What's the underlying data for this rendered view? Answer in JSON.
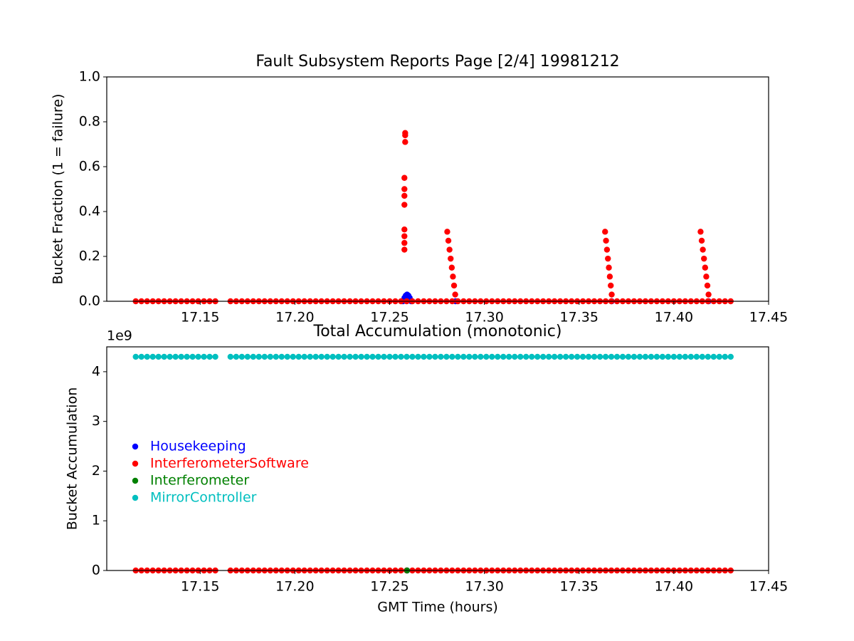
{
  "chart_data": [
    {
      "type": "scatter",
      "title": "Fault Subsystem Reports Page [2/4] 19981212",
      "y_label": "Bucket Fraction (1 = failure)",
      "xlim": [
        17.1007,
        17.45
      ],
      "xticks": [
        17.15,
        {
          "value": 17.2,
          "label": "17.20"
        },
        17.25,
        {
          "value": 17.3,
          "label": "17.30"
        },
        17.35,
        {
          "value": 17.4,
          "label": "17.40"
        },
        17.45
      ],
      "ylim": [
        0,
        1
      ],
      "yticks": [
        {
          "value": 0,
          "label": "0.0"
        },
        0.2,
        0.4,
        0.6,
        0.8,
        {
          "value": 1,
          "label": "1.0"
        }
      ],
      "series": [
        {
          "name": "Housekeeping",
          "color": "#0000ff",
          "x": [
            17.257,
            17.2578,
            17.2585,
            17.2592,
            17.2599,
            17.2606,
            17.2614,
            17.2848,
            17.3672,
            17.4183
          ],
          "values": [
            0,
            0.015,
            0.025,
            0.03,
            0.025,
            0.015,
            0,
            0,
            0,
            0
          ]
        },
        {
          "name": "InterferometerSoftware",
          "color": "#ff0000",
          "x": [
            17.116,
            17.119,
            17.122,
            17.125,
            17.128,
            17.131,
            17.134,
            17.137,
            17.14,
            17.143,
            17.146,
            17.149,
            17.152,
            17.155,
            17.158,
            17.166,
            17.169,
            17.172,
            17.175,
            17.178,
            17.181,
            17.184,
            17.187,
            17.19,
            17.193,
            17.196,
            17.199,
            17.202,
            17.205,
            17.208,
            17.211,
            17.214,
            17.217,
            17.22,
            17.223,
            17.226,
            17.229,
            17.232,
            17.235,
            17.238,
            17.241,
            17.244,
            17.247,
            17.25,
            17.253,
            17.256,
            17.259,
            17.262,
            17.265,
            17.268,
            17.271,
            17.274,
            17.277,
            17.28,
            17.283,
            17.286,
            17.289,
            17.292,
            17.295,
            17.298,
            17.301,
            17.304,
            17.307,
            17.31,
            17.313,
            17.316,
            17.319,
            17.322,
            17.325,
            17.328,
            17.331,
            17.334,
            17.337,
            17.34,
            17.343,
            17.346,
            17.349,
            17.352,
            17.355,
            17.358,
            17.361,
            17.364,
            17.367,
            17.37,
            17.373,
            17.376,
            17.379,
            17.382,
            17.385,
            17.388,
            17.391,
            17.394,
            17.397,
            17.4,
            17.403,
            17.406,
            17.409,
            17.412,
            17.415,
            17.418,
            17.421,
            17.424,
            17.427,
            17.43,
            17.2578,
            17.2578,
            17.2578,
            17.2578,
            17.2578,
            17.2578,
            17.2578,
            17.2578,
            17.2582,
            17.2582,
            17.2582,
            17.2804,
            17.281,
            17.2816,
            17.2822,
            17.2828,
            17.2834,
            17.284,
            17.2846,
            17.3637,
            17.3642,
            17.3647,
            17.3652,
            17.3657,
            17.3662,
            17.3667,
            17.3672,
            17.4141,
            17.4147,
            17.4153,
            17.4159,
            17.4165,
            17.4171,
            17.4177,
            17.4183
          ],
          "values": [
            0,
            0,
            0,
            0,
            0,
            0,
            0,
            0,
            0,
            0,
            0,
            0,
            0,
            0,
            0,
            0,
            0,
            0,
            0,
            0,
            0,
            0,
            0,
            0,
            0,
            0,
            0,
            0,
            0,
            0,
            0,
            0,
            0,
            0,
            0,
            0,
            0,
            0,
            0,
            0,
            0,
            0,
            0,
            0,
            0,
            0,
            0,
            0,
            0,
            0,
            0,
            0,
            0,
            0,
            0,
            0,
            0,
            0,
            0,
            0,
            0,
            0,
            0,
            0,
            0,
            0,
            0,
            0,
            0,
            0,
            0,
            0,
            0,
            0,
            0,
            0,
            0,
            0,
            0,
            0,
            0,
            0,
            0,
            0,
            0,
            0,
            0,
            0,
            0,
            0,
            0,
            0,
            0,
            0,
            0,
            0,
            0,
            0,
            0,
            0,
            0,
            0,
            0,
            0,
            0.23,
            0.26,
            0.29,
            0.32,
            0.43,
            0.47,
            0.5,
            0.55,
            0.71,
            0.74,
            0.75,
            0.31,
            0.27,
            0.23,
            0.19,
            0.15,
            0.11,
            0.07,
            0.03,
            0.31,
            0.27,
            0.23,
            0.19,
            0.15,
            0.11,
            0.07,
            0.03,
            0.31,
            0.27,
            0.23,
            0.19,
            0.15,
            0.11,
            0.07,
            0.03
          ]
        }
      ]
    },
    {
      "type": "scatter",
      "title": "Total Accumulation (monotonic)",
      "x_label": "GMT Time (hours)",
      "y_label": "Bucket Accumulation",
      "y_offset_label": "1e9",
      "legend": "lower left",
      "xlim": [
        17.1007,
        17.45
      ],
      "xticks": [
        17.15,
        {
          "value": 17.2,
          "label": "17.20"
        },
        17.25,
        {
          "value": 17.3,
          "label": "17.30"
        },
        17.35,
        {
          "value": 17.4,
          "label": "17.40"
        },
        17.45
      ],
      "ylim": [
        0,
        4500000000
      ],
      "yticks": [
        0,
        {
          "value": 1000000000,
          "label": "1"
        },
        {
          "value": 2000000000,
          "label": "2"
        },
        {
          "value": 3000000000,
          "label": "3"
        },
        {
          "value": 4000000000,
          "label": "4"
        }
      ],
      "series": [
        {
          "name": "Housekeeping",
          "color": "#0000ff",
          "x": [
            17.2592
          ],
          "values": [
            0
          ]
        },
        {
          "name": "InterferometerSoftware",
          "color": "#ff0000",
          "x": [
            17.116,
            17.119,
            17.122,
            17.125,
            17.128,
            17.131,
            17.134,
            17.137,
            17.14,
            17.143,
            17.146,
            17.149,
            17.152,
            17.155,
            17.158,
            17.166,
            17.169,
            17.172,
            17.175,
            17.178,
            17.181,
            17.184,
            17.187,
            17.19,
            17.193,
            17.196,
            17.199,
            17.202,
            17.205,
            17.208,
            17.211,
            17.214,
            17.217,
            17.22,
            17.223,
            17.226,
            17.229,
            17.232,
            17.235,
            17.238,
            17.241,
            17.244,
            17.247,
            17.25,
            17.253,
            17.256,
            17.259,
            17.262,
            17.265,
            17.268,
            17.271,
            17.274,
            17.277,
            17.28,
            17.283,
            17.286,
            17.289,
            17.292,
            17.295,
            17.298,
            17.301,
            17.304,
            17.307,
            17.31,
            17.313,
            17.316,
            17.319,
            17.322,
            17.325,
            17.328,
            17.331,
            17.334,
            17.337,
            17.34,
            17.343,
            17.346,
            17.349,
            17.352,
            17.355,
            17.358,
            17.361,
            17.364,
            17.367,
            17.37,
            17.373,
            17.376,
            17.379,
            17.382,
            17.385,
            17.388,
            17.391,
            17.394,
            17.397,
            17.4,
            17.403,
            17.406,
            17.409,
            17.412,
            17.415,
            17.418,
            17.421,
            17.424,
            17.427,
            17.43
          ],
          "values": [
            0,
            0,
            0,
            0,
            0,
            0,
            0,
            0,
            0,
            0,
            0,
            0,
            0,
            0,
            0,
            0,
            0,
            0,
            0,
            0,
            0,
            0,
            0,
            0,
            0,
            0,
            0,
            0,
            0,
            0,
            0,
            0,
            0,
            0,
            0,
            0,
            0,
            0,
            0,
            0,
            0,
            0,
            0,
            0,
            0,
            0,
            0,
            0,
            0,
            0,
            0,
            0,
            0,
            0,
            0,
            0,
            0,
            0,
            0,
            0,
            0,
            0,
            0,
            0,
            0,
            0,
            0,
            0,
            0,
            0,
            0,
            0,
            0,
            0,
            0,
            0,
            0,
            0,
            0,
            0,
            0,
            0,
            0,
            0,
            0,
            0,
            0,
            0,
            0,
            0,
            0,
            0,
            0,
            0,
            0,
            0,
            0,
            0,
            0,
            0,
            0,
            0,
            0,
            0
          ]
        },
        {
          "name": "Interferometer",
          "color": "#008000",
          "x": [
            17.2592
          ],
          "values": [
            0
          ]
        },
        {
          "name": "MirrorController",
          "color": "#00bfbf",
          "x": [
            17.116,
            17.119,
            17.122,
            17.125,
            17.128,
            17.131,
            17.134,
            17.137,
            17.14,
            17.143,
            17.146,
            17.149,
            17.152,
            17.155,
            17.158,
            17.166,
            17.169,
            17.172,
            17.175,
            17.178,
            17.181,
            17.184,
            17.187,
            17.19,
            17.193,
            17.196,
            17.199,
            17.202,
            17.205,
            17.208,
            17.211,
            17.214,
            17.217,
            17.22,
            17.223,
            17.226,
            17.229,
            17.232,
            17.235,
            17.238,
            17.241,
            17.244,
            17.247,
            17.25,
            17.253,
            17.256,
            17.259,
            17.262,
            17.265,
            17.268,
            17.271,
            17.274,
            17.277,
            17.28,
            17.283,
            17.286,
            17.289,
            17.292,
            17.295,
            17.298,
            17.301,
            17.304,
            17.307,
            17.31,
            17.313,
            17.316,
            17.319,
            17.322,
            17.325,
            17.328,
            17.331,
            17.334,
            17.337,
            17.34,
            17.343,
            17.346,
            17.349,
            17.352,
            17.355,
            17.358,
            17.361,
            17.364,
            17.367,
            17.37,
            17.373,
            17.376,
            17.379,
            17.382,
            17.385,
            17.388,
            17.391,
            17.394,
            17.397,
            17.4,
            17.403,
            17.406,
            17.409,
            17.412,
            17.415,
            17.418,
            17.421,
            17.424,
            17.427,
            17.43
          ],
          "values": [
            4300000000,
            4300000000,
            4300000000,
            4300000000,
            4300000000,
            4300000000,
            4300000000,
            4300000000,
            4300000000,
            4300000000,
            4300000000,
            4300000000,
            4300000000,
            4300000000,
            4300000000,
            4300000000,
            4300000000,
            4300000000,
            4300000000,
            4300000000,
            4300000000,
            4300000000,
            4300000000,
            4300000000,
            4300000000,
            4300000000,
            4300000000,
            4300000000,
            4300000000,
            4300000000,
            4300000000,
            4300000000,
            4300000000,
            4300000000,
            4300000000,
            4300000000,
            4300000000,
            4300000000,
            4300000000,
            4300000000,
            4300000000,
            4300000000,
            4300000000,
            4300000000,
            4300000000,
            4300000000,
            4300000000,
            4300000000,
            4300000000,
            4300000000,
            4300000000,
            4300000000,
            4300000000,
            4300000000,
            4300000000,
            4300000000,
            4300000000,
            4300000000,
            4300000000,
            4300000000,
            4300000000,
            4300000000,
            4300000000,
            4300000000,
            4300000000,
            4300000000,
            4300000000,
            4300000000,
            4300000000,
            4300000000,
            4300000000,
            4300000000,
            4300000000,
            4300000000,
            4300000000,
            4300000000,
            4300000000,
            4300000000,
            4300000000,
            4300000000,
            4300000000,
            4300000000,
            4300000000,
            4300000000,
            4300000000,
            4300000000,
            4300000000,
            4300000000,
            4300000000,
            4300000000,
            4300000000,
            4300000000,
            4300000000,
            4300000000,
            4300000000,
            4300000000,
            4300000000,
            4300000000,
            4300000000,
            4300000000,
            4300000000,
            4300000000,
            4300000000,
            4300000000
          ]
        }
      ]
    }
  ]
}
